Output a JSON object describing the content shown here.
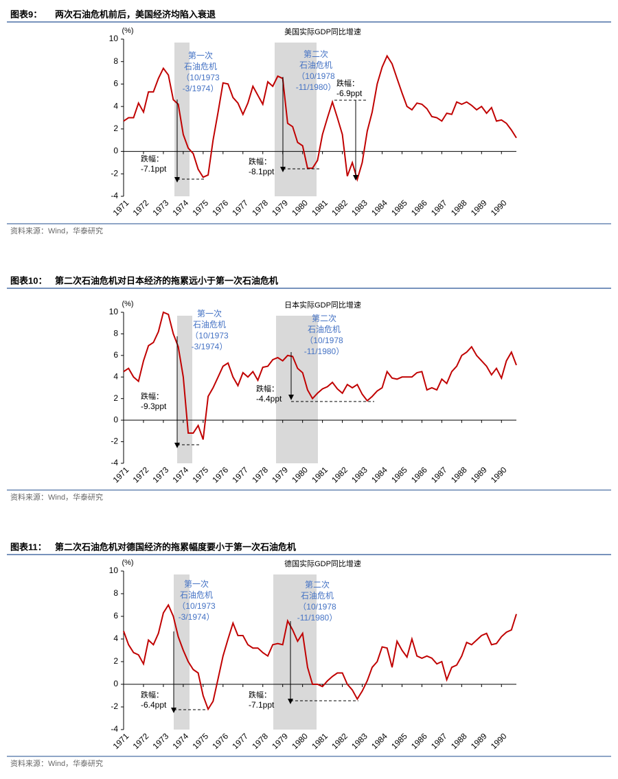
{
  "chart_data": [
    {
      "type": "line",
      "label": "图表9：",
      "title": "两次石油危机前后，美国经济均陷入衰退",
      "subtitle": "美国实际GDP同比增速",
      "y_label": "(%)",
      "categories": [
        "1971",
        null,
        null,
        null,
        "1972",
        null,
        null,
        null,
        "1973",
        null,
        null,
        null,
        "1974",
        null,
        null,
        null,
        "1975",
        null,
        null,
        null,
        "1976",
        null,
        null,
        null,
        "1977",
        null,
        null,
        null,
        "1978",
        null,
        null,
        null,
        "1979",
        null,
        null,
        null,
        "1980",
        null,
        null,
        null,
        "1981",
        null,
        null,
        null,
        "1982",
        null,
        null,
        null,
        "1983",
        null,
        null,
        null,
        "1984",
        null,
        null,
        null,
        "1985",
        null,
        null,
        null,
        "1986",
        null,
        null,
        null,
        "1987",
        null,
        null,
        null,
        "1988",
        null,
        null,
        null,
        "1989",
        null,
        null,
        null,
        "1990",
        null,
        null,
        null
      ],
      "series": [
        {
          "color": "#c00000",
          "values": [
            2.7,
            3.0,
            3.0,
            4.3,
            3.5,
            5.3,
            5.3,
            6.5,
            7.4,
            6.8,
            4.6,
            4.2,
            1.5,
            0.3,
            -0.2,
            -1.6,
            -2.3,
            -2.1,
            1.0,
            3.5,
            6.1,
            6.0,
            4.8,
            4.3,
            3.3,
            4.3,
            5.8,
            5.0,
            4.2,
            6.2,
            5.8,
            6.7,
            6.5,
            2.5,
            2.2,
            0.8,
            0.5,
            -1.5,
            -1.5,
            -0.8,
            1.5,
            3.0,
            4.4,
            3.0,
            1.5,
            -2.2,
            -1.0,
            -2.5,
            -1.0,
            1.8,
            3.5,
            6.0,
            7.5,
            8.5,
            7.8,
            6.5,
            5.2,
            4.0,
            3.7,
            4.3,
            4.2,
            3.8,
            3.1,
            3.0,
            2.7,
            3.4,
            3.3,
            4.4,
            4.2,
            4.4,
            4.1,
            3.7,
            4.0,
            3.4,
            3.9,
            2.7,
            2.8,
            2.5,
            1.9,
            1.2
          ]
        }
      ],
      "ylim": [
        -4,
        10
      ],
      "yticks": [
        -4,
        -2,
        0,
        2,
        4,
        6,
        8,
        10
      ],
      "crises": [
        {
          "lines": [
            "第一次",
            "石油危机",
            "（10/1973",
            "-3/1974）"
          ],
          "color": "#4472c4"
        },
        {
          "lines": [
            "第二次",
            "石油危机",
            "（10/1978",
            "-11/1980）"
          ],
          "color": "#4472c4"
        }
      ],
      "drops": [
        {
          "label": "跌幅：",
          "text": "-7.1ppt"
        },
        {
          "label": "跌幅：",
          "text": "-8.1ppt"
        },
        {
          "label": "跌幅：",
          "text": "-6.9ppt"
        }
      ],
      "source": "资料来源：Wind，华泰研究"
    },
    {
      "type": "line",
      "label": "图表10：",
      "title": "第二次石油危机对日本经济的拖累远小于第一次石油危机",
      "subtitle": "日本实际GDP同比增速",
      "y_label": "(%)",
      "categories": [
        "1971",
        null,
        null,
        null,
        "1972",
        null,
        null,
        null,
        "1973",
        null,
        null,
        null,
        "1974",
        null,
        null,
        null,
        "1975",
        null,
        null,
        null,
        "1976",
        null,
        null,
        null,
        "1977",
        null,
        null,
        null,
        "1978",
        null,
        null,
        null,
        "1979",
        null,
        null,
        null,
        "1980",
        null,
        null,
        null,
        "1981",
        null,
        null,
        null,
        "1982",
        null,
        null,
        null,
        "1983",
        null,
        null,
        null,
        "1984",
        null,
        null,
        null,
        "1985",
        null,
        null,
        null,
        "1986",
        null,
        null,
        null,
        "1987",
        null,
        null,
        null,
        "1988",
        null,
        null,
        null,
        "1989",
        null,
        null,
        null,
        "1990",
        null,
        null,
        null
      ],
      "series": [
        {
          "color": "#c00000",
          "values": [
            4.5,
            4.8,
            4.0,
            3.6,
            5.5,
            6.9,
            7.2,
            8.2,
            10.0,
            9.8,
            8.0,
            6.8,
            4.0,
            -1.2,
            -1.2,
            -0.5,
            -1.8,
            2.2,
            3.0,
            4.0,
            5.0,
            5.3,
            4.0,
            3.2,
            4.4,
            4.0,
            4.5,
            3.7,
            4.9,
            5.0,
            5.6,
            5.8,
            5.5,
            6.0,
            5.9,
            4.8,
            4.4,
            2.8,
            2.0,
            2.5,
            2.9,
            3.1,
            3.5,
            2.9,
            2.5,
            3.3,
            3.0,
            3.3,
            2.4,
            1.8,
            2.2,
            2.7,
            3.0,
            4.5,
            3.9,
            3.8,
            4.0,
            4.0,
            4.0,
            4.4,
            4.5,
            2.8,
            3.0,
            2.8,
            3.8,
            3.4,
            4.5,
            5.0,
            6.0,
            6.3,
            6.8,
            6.0,
            5.5,
            5.0,
            4.2,
            4.8,
            3.9,
            5.5,
            6.3,
            5.1
          ]
        }
      ],
      "ylim": [
        -4,
        10
      ],
      "yticks": [
        -4,
        -2,
        0,
        2,
        4,
        6,
        8,
        10
      ],
      "crises": [
        {
          "lines": [
            "第一次",
            "石油危机",
            "（10/1973",
            "-3/1974）"
          ],
          "color": "#4472c4"
        },
        {
          "lines": [
            "第二次",
            "石油危机",
            "（10/1978",
            "-11/1980）"
          ],
          "color": "#4472c4"
        }
      ],
      "drops": [
        {
          "label": "跌幅：",
          "text": "-9.3ppt"
        },
        {
          "label": "跌幅：",
          "text": "-4.4ppt"
        }
      ],
      "source": "资料来源：Wind，华泰研究"
    },
    {
      "type": "line",
      "label": "图表11：",
      "title": "第二次石油危机对德国经济的拖累幅度要小于第一次石油危机",
      "subtitle": "德国实际GDP同比增速",
      "y_label": "(%)",
      "categories": [
        "1971",
        null,
        null,
        null,
        "1972",
        null,
        null,
        null,
        "1973",
        null,
        null,
        null,
        "1974",
        null,
        null,
        null,
        "1975",
        null,
        null,
        null,
        "1976",
        null,
        null,
        null,
        "1977",
        null,
        null,
        null,
        "1978",
        null,
        null,
        null,
        "1979",
        null,
        null,
        null,
        "1980",
        null,
        null,
        null,
        "1981",
        null,
        null,
        null,
        "1982",
        null,
        null,
        null,
        "1983",
        null,
        null,
        null,
        "1984",
        null,
        null,
        null,
        "1985",
        null,
        null,
        null,
        "1986",
        null,
        null,
        null,
        "1987",
        null,
        null,
        null,
        "1988",
        null,
        null,
        null,
        "1989",
        null,
        null,
        null,
        "1990",
        null,
        null,
        null
      ],
      "series": [
        {
          "color": "#c00000",
          "values": [
            4.7,
            3.5,
            2.8,
            2.6,
            1.8,
            3.9,
            3.5,
            4.5,
            6.3,
            7.0,
            6.0,
            4.2,
            3.0,
            2.0,
            1.3,
            1.0,
            -1.0,
            -2.2,
            -1.5,
            0.5,
            2.5,
            4.0,
            5.4,
            4.3,
            4.3,
            3.5,
            3.2,
            3.2,
            2.8,
            2.5,
            3.5,
            3.6,
            3.5,
            5.6,
            4.8,
            3.8,
            4.5,
            1.5,
            0.0,
            0.0,
            -0.2,
            0.3,
            0.7,
            1.0,
            1.0,
            0.0,
            -0.5,
            -1.3,
            -0.6,
            0.3,
            1.5,
            2.0,
            3.3,
            3.2,
            1.5,
            3.8,
            3.0,
            2.4,
            4.0,
            2.5,
            2.3,
            2.5,
            2.3,
            1.8,
            2.0,
            0.4,
            1.5,
            1.7,
            2.5,
            3.7,
            3.5,
            3.9,
            4.3,
            4.5,
            3.5,
            3.6,
            4.2,
            4.6,
            4.8,
            6.2
          ]
        }
      ],
      "ylim": [
        -4,
        10
      ],
      "yticks": [
        -4,
        -2,
        0,
        2,
        4,
        6,
        8,
        10
      ],
      "crises": [
        {
          "lines": [
            "第一次",
            "石油危机",
            "（10/1973",
            "-3/1974）"
          ],
          "color": "#4472c4"
        },
        {
          "lines": [
            "第二次",
            "石油危机",
            "（10/1978",
            "-11/1980）"
          ],
          "color": "#4472c4"
        }
      ],
      "drops": [
        {
          "label": "跌幅：",
          "text": "-6.4ppt"
        },
        {
          "label": "跌幅：",
          "text": "-7.1ppt"
        }
      ],
      "source": "资料来源：Wind，华泰研究"
    }
  ]
}
